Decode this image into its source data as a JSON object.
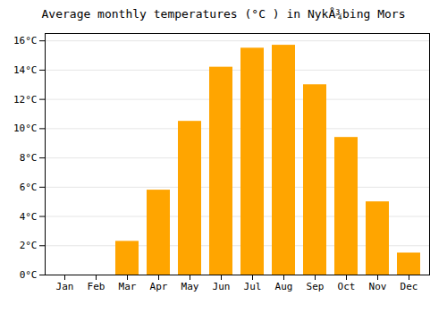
{
  "chart_data": {
    "type": "bar",
    "title": "Average monthly temperatures (°C ) in NykÅ¾bing Mors",
    "categories": [
      "Jan",
      "Feb",
      "Mar",
      "Apr",
      "May",
      "Jun",
      "Jul",
      "Aug",
      "Sep",
      "Oct",
      "Nov",
      "Dec"
    ],
    "values": [
      0,
      0,
      2.3,
      5.8,
      10.5,
      14.2,
      15.5,
      15.7,
      13.0,
      9.4,
      5.0,
      1.5
    ],
    "color": "#FFA500",
    "ylim": [
      0,
      16.5
    ],
    "yticks": [
      {
        "value": 0,
        "label": "0°C"
      },
      {
        "value": 2,
        "label": "2°C"
      },
      {
        "value": 4,
        "label": "4°C"
      },
      {
        "value": 6,
        "label": "6°C"
      },
      {
        "value": 8,
        "label": "8°C"
      },
      {
        "value": 10,
        "label": "10°C"
      },
      {
        "value": 12,
        "label": "12°C"
      },
      {
        "value": 14,
        "label": "14°C"
      },
      {
        "value": 16,
        "label": "16°C"
      }
    ],
    "grid": true
  }
}
